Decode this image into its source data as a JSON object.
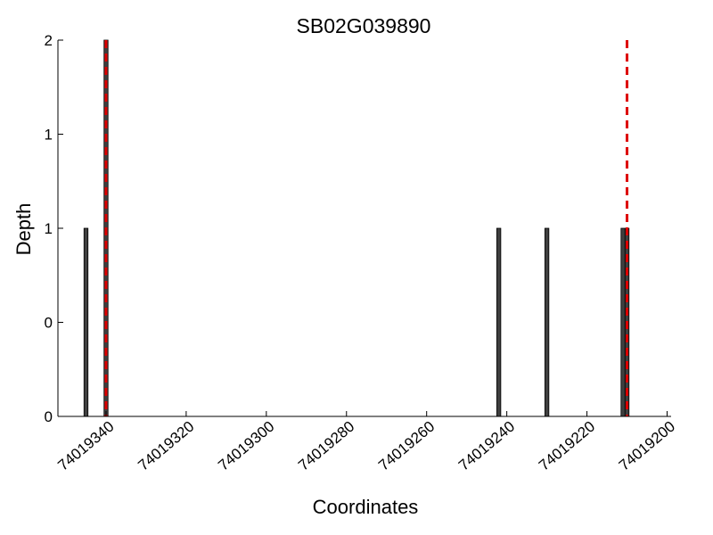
{
  "chart_data": {
    "type": "bar",
    "title": "SB02G039890",
    "xlabel": "Coordinates",
    "ylabel": "Depth",
    "x_reversed": true,
    "xlim": [
      74019352,
      74019199
    ],
    "x_ticks": [
      74019340,
      74019320,
      74019300,
      74019280,
      74019260,
      74019240,
      74019220,
      74019200
    ],
    "x_tick_labels": [
      "74019340",
      "74019320",
      "74019300",
      "74019280",
      "74019260",
      "74019240",
      "74019220",
      "74019200"
    ],
    "ylim": [
      0,
      2
    ],
    "y_ticks": [
      0,
      0.5,
      1,
      1.5,
      2
    ],
    "y_tick_labels": [
      "0",
      "0",
      "1",
      "1",
      "2"
    ],
    "bars": [
      {
        "x": 74019345,
        "value": 1
      },
      {
        "x": 74019340,
        "value": 2
      },
      {
        "x": 74019242,
        "value": 1
      },
      {
        "x": 74019230,
        "value": 1
      },
      {
        "x": 74019211,
        "value": 1
      },
      {
        "x": 74019210,
        "value": 1
      }
    ],
    "bar_color": "#3f3f3f",
    "vlines": [
      74019340,
      74019210
    ],
    "vline_color": "#dd0000",
    "vline_style": "dashed",
    "grid": false,
    "legend": "none"
  }
}
